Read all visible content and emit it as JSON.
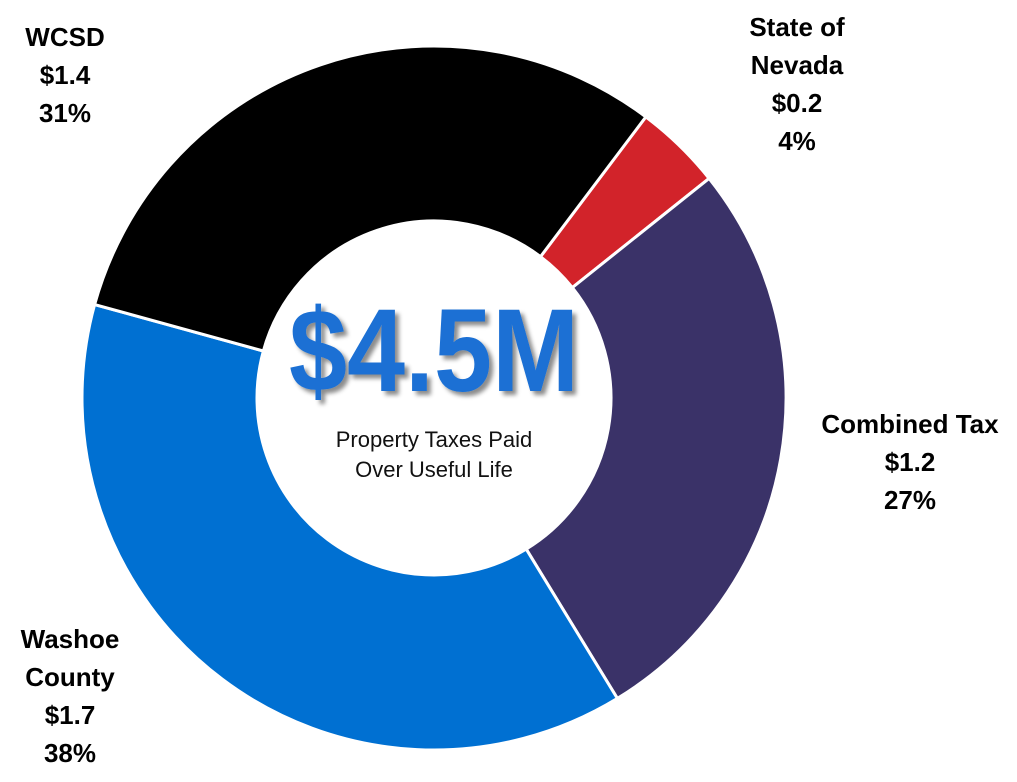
{
  "chart_data": {
    "type": "donut",
    "categories": [
      "State of Nevada",
      "Combined Tax",
      "Washoe County",
      "WCSD"
    ],
    "values": [
      4,
      27,
      38,
      31
    ],
    "value_labels": [
      "4%",
      "27%",
      "38%",
      "31%"
    ],
    "amounts": [
      0.2,
      1.2,
      1.7,
      1.4
    ],
    "amount_labels": [
      "$0.2",
      "$1.2",
      "$1.7",
      "$1.4"
    ],
    "colors": [
      "#d2232a",
      "#3a3268",
      "#0070d2",
      "#000000"
    ],
    "center_title": "$4.5M",
    "center_subtitle": "Property Taxes Paid Over Useful Life"
  }
}
